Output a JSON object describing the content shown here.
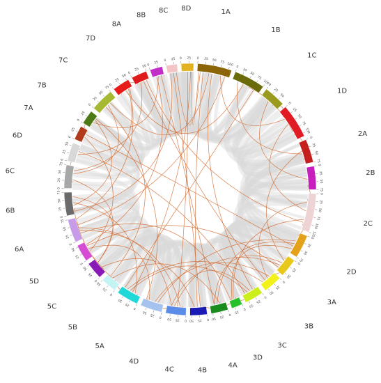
{
  "chart_data": {
    "type": "circos",
    "title": "",
    "chromosomes": [
      {
        "name": "1A",
        "size": 110,
        "color": "#8B6508"
      },
      {
        "name": "1B",
        "size": 100,
        "color": "#6B6B0A"
      },
      {
        "name": "1C",
        "size": 70,
        "color": "#9A9A1E"
      },
      {
        "name": "1D",
        "size": 110,
        "color": "#E01B24"
      },
      {
        "name": "2A",
        "size": 75,
        "color": "#C41E1E"
      },
      {
        "name": "2B",
        "size": 75,
        "color": "#C81EBE"
      },
      {
        "name": "2C",
        "size": 125,
        "color": "#EDD3D3"
      },
      {
        "name": "2D",
        "size": 75,
        "color": "#E3A21A"
      },
      {
        "name": "3A",
        "size": 60,
        "color": "#E8C81A"
      },
      {
        "name": "3B",
        "size": 60,
        "color": "#F2F21A"
      },
      {
        "name": "3C",
        "size": 60,
        "color": "#CCEE1A"
      },
      {
        "name": "3D",
        "size": 35,
        "color": "#27C12A"
      },
      {
        "name": "4A",
        "size": 55,
        "color": "#1A8C1E"
      },
      {
        "name": "4B",
        "size": 55,
        "color": "#1A1AB5"
      },
      {
        "name": "4C",
        "size": 65,
        "color": "#5A8CE8"
      },
      {
        "name": "4D",
        "size": 70,
        "color": "#A6C2EE"
      },
      {
        "name": "5A",
        "size": 70,
        "color": "#20D8D8"
      },
      {
        "name": "5B",
        "size": 50,
        "color": "#C4F3F3"
      },
      {
        "name": "5C",
        "size": 55,
        "color": "#8A1AB8"
      },
      {
        "name": "5D",
        "size": 55,
        "color": "#D64BD6"
      },
      {
        "name": "6A",
        "size": 75,
        "color": "#C79BE8"
      },
      {
        "name": "6B",
        "size": 75,
        "color": "#6B6B6B"
      },
      {
        "name": "6C",
        "size": 75,
        "color": "#A8A8A8"
      },
      {
        "name": "6D",
        "size": 60,
        "color": "#D8D8D8"
      },
      {
        "name": "7A",
        "size": 45,
        "color": "#B03A1A"
      },
      {
        "name": "7B",
        "size": 45,
        "color": "#4D7A16"
      },
      {
        "name": "7C",
        "size": 75,
        "color": "#A7B832"
      },
      {
        "name": "7D",
        "size": 55,
        "color": "#E81B1B"
      },
      {
        "name": "8A",
        "size": 50,
        "color": "#E01B1B"
      },
      {
        "name": "8B",
        "size": 40,
        "color": "#C42EC8"
      },
      {
        "name": "8C",
        "size": 35,
        "color": "#F4C4C4"
      },
      {
        "name": "8D",
        "size": 40,
        "color": "#E3B222"
      }
    ],
    "links_orange": [
      [
        "1A",
        20,
        "4B",
        30
      ],
      [
        "1A",
        50,
        "3C",
        20
      ],
      [
        "1A",
        80,
        "1D",
        30
      ],
      [
        "1B",
        20,
        "2A",
        40
      ],
      [
        "1B",
        60,
        "1D",
        80
      ],
      [
        "1C",
        30,
        "2B",
        40
      ],
      [
        "1D",
        50,
        "2C",
        60
      ],
      [
        "2A",
        30,
        "3A",
        20
      ],
      [
        "2C",
        30,
        "3B",
        30
      ],
      [
        "2C",
        90,
        "3D",
        20
      ],
      [
        "2D",
        40,
        "4A",
        30
      ],
      [
        "3A",
        40,
        "4C",
        40
      ],
      [
        "3B",
        20,
        "4D",
        30
      ],
      [
        "3C",
        40,
        "5A",
        40
      ],
      [
        "4A",
        20,
        "5B",
        30
      ],
      [
        "4B",
        40,
        "5C",
        20
      ],
      [
        "4C",
        20,
        "6A",
        30
      ],
      [
        "4D",
        50,
        "5D",
        30
      ],
      [
        "5A",
        20,
        "6B",
        40
      ],
      [
        "5B",
        30,
        "6A",
        60
      ],
      [
        "5C",
        40,
        "6C",
        30
      ],
      [
        "5D",
        20,
        "7A",
        20
      ],
      [
        "6A",
        40,
        "4C",
        50
      ],
      [
        "6B",
        30,
        "7B",
        30
      ],
      [
        "6C",
        50,
        "7C",
        40
      ],
      [
        "6D",
        30,
        "8A",
        20
      ],
      [
        "7A",
        30,
        "2D",
        50
      ],
      [
        "7B",
        20,
        "8B",
        20
      ],
      [
        "7C",
        50,
        "1A",
        40
      ],
      [
        "7D",
        30,
        "1B",
        40
      ],
      [
        "8A",
        30,
        "3B",
        40
      ],
      [
        "8B",
        30,
        "4A",
        40
      ],
      [
        "8C",
        20,
        "4B",
        20
      ],
      [
        "8D",
        20,
        "4C",
        30
      ],
      [
        "8D",
        30,
        "5A",
        30
      ],
      [
        "8A",
        40,
        "2C",
        100
      ],
      [
        "7D",
        40,
        "6C",
        60
      ],
      [
        "6D",
        40,
        "3C",
        50
      ],
      [
        "6B",
        60,
        "5C",
        40
      ],
      [
        "6A",
        20,
        "3D",
        30
      ],
      [
        "5D",
        40,
        "3A",
        50
      ],
      [
        "5A",
        50,
        "3B",
        50
      ],
      [
        "4D",
        20,
        "2D",
        30
      ],
      [
        "4C",
        50,
        "3C",
        30
      ],
      [
        "4B",
        10,
        "3D",
        10
      ],
      [
        "4A",
        40,
        "3A",
        30
      ],
      [
        "3D",
        25,
        "2D",
        60
      ],
      [
        "7C",
        30,
        "5B",
        40
      ],
      [
        "7B",
        35,
        "4D",
        60
      ],
      [
        "8B",
        15,
        "5D",
        45
      ],
      [
        "1A",
        95,
        "6A",
        50
      ],
      [
        "1B",
        80,
        "5A",
        60
      ],
      [
        "2B",
        60,
        "2C",
        110
      ],
      [
        "1D",
        90,
        "2A",
        60
      ],
      [
        "1C",
        50,
        "1D",
        20
      ],
      [
        "8C",
        30,
        "1A",
        10
      ],
      [
        "6C",
        20,
        "6D",
        50
      ],
      [
        "7A",
        40,
        "7B",
        10
      ],
      [
        "5C",
        10,
        "6B",
        20
      ],
      [
        "4C",
        10,
        "4D",
        60
      ],
      [
        "2C",
        20,
        "2D",
        10
      ],
      [
        "3A",
        10,
        "3B",
        10
      ],
      [
        "3C",
        10,
        "3D",
        30
      ],
      [
        "5A",
        10,
        "5B",
        20
      ],
      [
        "8D",
        35,
        "1A",
        5
      ],
      [
        "7D",
        10,
        "8A",
        10
      ],
      [
        "6A",
        70,
        "7D",
        45
      ],
      [
        "6B",
        10,
        "8C",
        10
      ]
    ]
  }
}
